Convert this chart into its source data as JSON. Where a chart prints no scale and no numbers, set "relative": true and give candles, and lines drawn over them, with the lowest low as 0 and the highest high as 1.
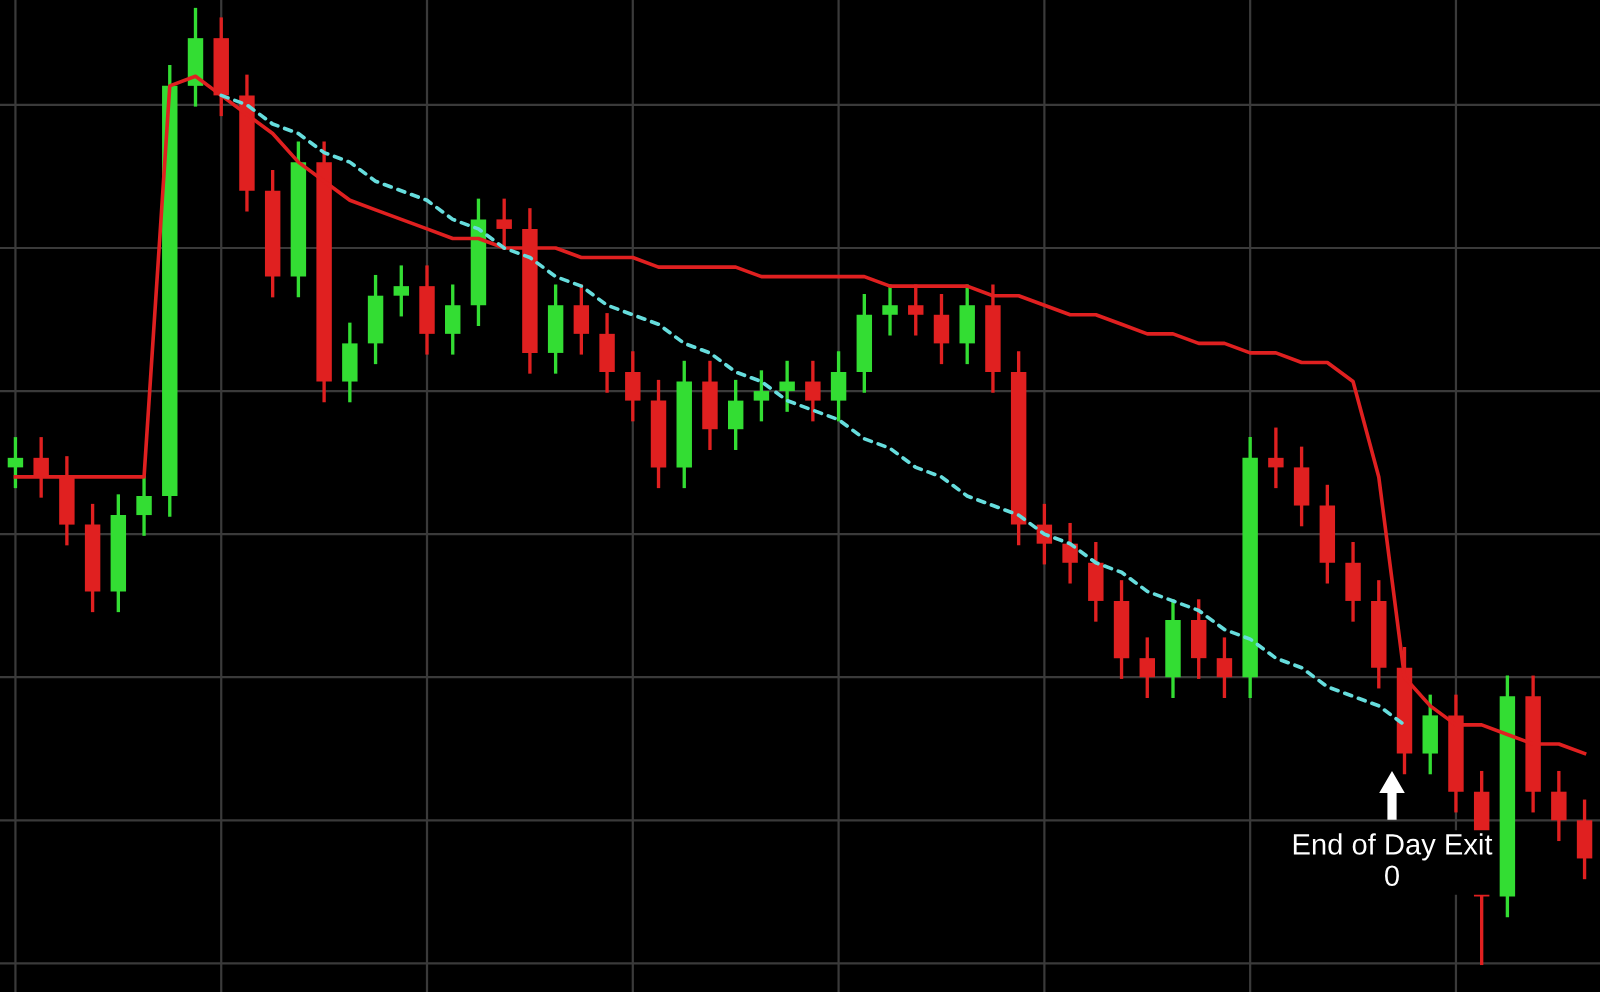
{
  "chart_data": {
    "type": "candlestick",
    "relative": true,
    "grid": true,
    "categories": [
      null,
      null,
      null,
      null,
      null,
      null,
      null,
      null,
      null,
      null,
      null,
      null,
      null,
      null,
      null,
      null,
      null,
      null,
      null,
      null,
      null,
      null,
      null,
      null,
      null,
      null,
      null,
      null,
      null,
      null,
      null,
      null,
      null,
      null,
      null,
      null,
      null,
      null,
      null,
      null,
      null,
      null,
      null,
      null,
      null,
      null,
      null,
      null,
      null,
      null,
      null,
      null,
      null,
      null,
      null,
      null,
      null,
      null,
      null,
      null,
      null,
      null
    ],
    "ohlc": [
      [
        0.52,
        0.55,
        0.5,
        0.53
      ],
      [
        0.53,
        0.55,
        0.49,
        0.51
      ],
      [
        0.51,
        0.53,
        0.44,
        0.46
      ],
      [
        0.46,
        0.48,
        0.37,
        0.39
      ],
      [
        0.39,
        0.49,
        0.37,
        0.47
      ],
      [
        0.47,
        0.51,
        0.45,
        0.49
      ],
      [
        0.49,
        0.94,
        0.47,
        0.92
      ],
      [
        0.92,
        1.0,
        0.9,
        0.97
      ],
      [
        0.97,
        0.99,
        0.89,
        0.91
      ],
      [
        0.91,
        0.93,
        0.79,
        0.81
      ],
      [
        0.81,
        0.83,
        0.7,
        0.72
      ],
      [
        0.72,
        0.86,
        0.7,
        0.84
      ],
      [
        0.84,
        0.86,
        0.59,
        0.61
      ],
      [
        0.61,
        0.67,
        0.59,
        0.65
      ],
      [
        0.65,
        0.72,
        0.63,
        0.7
      ],
      [
        0.7,
        0.73,
        0.68,
        0.71
      ],
      [
        0.71,
        0.73,
        0.64,
        0.66
      ],
      [
        0.66,
        0.71,
        0.64,
        0.69
      ],
      [
        0.69,
        0.8,
        0.67,
        0.78
      ],
      [
        0.78,
        0.8,
        0.75,
        0.77
      ],
      [
        0.77,
        0.79,
        0.62,
        0.64
      ],
      [
        0.64,
        0.71,
        0.62,
        0.69
      ],
      [
        0.69,
        0.71,
        0.64,
        0.66
      ],
      [
        0.66,
        0.68,
        0.6,
        0.62
      ],
      [
        0.62,
        0.64,
        0.57,
        0.59
      ],
      [
        0.59,
        0.61,
        0.5,
        0.52
      ],
      [
        0.52,
        0.63,
        0.5,
        0.61
      ],
      [
        0.61,
        0.63,
        0.54,
        0.56
      ],
      [
        0.56,
        0.61,
        0.54,
        0.59
      ],
      [
        0.59,
        0.62,
        0.57,
        0.6
      ],
      [
        0.6,
        0.63,
        0.58,
        0.61
      ],
      [
        0.61,
        0.63,
        0.57,
        0.59
      ],
      [
        0.59,
        0.64,
        0.57,
        0.62
      ],
      [
        0.62,
        0.7,
        0.6,
        0.68
      ],
      [
        0.68,
        0.71,
        0.66,
        0.69
      ],
      [
        0.69,
        0.71,
        0.66,
        0.68
      ],
      [
        0.68,
        0.7,
        0.63,
        0.65
      ],
      [
        0.65,
        0.71,
        0.63,
        0.69
      ],
      [
        0.69,
        0.71,
        0.6,
        0.62
      ],
      [
        0.62,
        0.64,
        0.44,
        0.46
      ],
      [
        0.46,
        0.48,
        0.42,
        0.44
      ],
      [
        0.44,
        0.46,
        0.4,
        0.42
      ],
      [
        0.42,
        0.44,
        0.36,
        0.38
      ],
      [
        0.38,
        0.4,
        0.3,
        0.32
      ],
      [
        0.32,
        0.34,
        0.28,
        0.3
      ],
      [
        0.3,
        0.38,
        0.28,
        0.36
      ],
      [
        0.36,
        0.38,
        0.3,
        0.32
      ],
      [
        0.32,
        0.34,
        0.28,
        0.3
      ],
      [
        0.3,
        0.55,
        0.28,
        0.53
      ],
      [
        0.53,
        0.56,
        0.5,
        0.52
      ],
      [
        0.52,
        0.54,
        0.46,
        0.48
      ],
      [
        0.48,
        0.5,
        0.4,
        0.42
      ],
      [
        0.42,
        0.44,
        0.36,
        0.38
      ],
      [
        0.38,
        0.4,
        0.29,
        0.31
      ],
      [
        0.31,
        0.33,
        0.2,
        0.22
      ],
      [
        0.22,
        0.28,
        0.2,
        0.26
      ],
      [
        0.26,
        0.28,
        0.16,
        0.18
      ],
      [
        0.18,
        0.2,
        0.0,
        0.07
      ],
      [
        0.07,
        0.3,
        0.05,
        0.28
      ],
      [
        0.28,
        0.3,
        0.16,
        0.18
      ],
      [
        0.18,
        0.2,
        0.13,
        0.15
      ],
      [
        0.15,
        0.17,
        0.09,
        0.11
      ]
    ],
    "colors": [
      "#33dd33",
      "#e02020",
      "#e02020",
      "#e02020",
      "#33dd33",
      "#33dd33",
      "#33dd33",
      "#33dd33",
      "#e02020",
      "#e02020",
      "#e02020",
      "#33dd33",
      "#e02020",
      "#33dd33",
      "#33dd33",
      "#33dd33",
      "#e02020",
      "#33dd33",
      "#33dd33",
      "#e02020",
      "#e02020",
      "#33dd33",
      "#e02020",
      "#e02020",
      "#e02020",
      "#e02020",
      "#33dd33",
      "#e02020",
      "#33dd33",
      "#33dd33",
      "#33dd33",
      "#e02020",
      "#33dd33",
      "#33dd33",
      "#33dd33",
      "#e02020",
      "#e02020",
      "#33dd33",
      "#e02020",
      "#e02020",
      "#e02020",
      "#e02020",
      "#e02020",
      "#e02020",
      "#e02020",
      "#33dd33",
      "#e02020",
      "#e02020",
      "#33dd33",
      "#e02020",
      "#e02020",
      "#e02020",
      "#e02020",
      "#e02020",
      "#e02020",
      "#33dd33",
      "#e02020",
      "#e02020",
      "#33dd33",
      "#e02020",
      "#e02020",
      "#e02020"
    ],
    "series": [
      {
        "type": "line",
        "color": "#e02020",
        "line_style": "solid",
        "values": [
          0.51,
          0.51,
          0.51,
          0.51,
          0.51,
          0.51,
          0.92,
          0.93,
          0.91,
          0.89,
          0.87,
          0.84,
          0.82,
          0.8,
          0.79,
          0.78,
          0.77,
          0.76,
          0.76,
          0.75,
          0.75,
          0.75,
          0.74,
          0.74,
          0.74,
          0.73,
          0.73,
          0.73,
          0.73,
          0.72,
          0.72,
          0.72,
          0.72,
          0.72,
          0.71,
          0.71,
          0.71,
          0.71,
          0.7,
          0.7,
          0.69,
          0.68,
          0.68,
          0.67,
          0.66,
          0.66,
          0.65,
          0.65,
          0.64,
          0.64,
          0.63,
          0.63,
          0.61,
          0.51,
          0.3,
          0.27,
          0.25,
          0.25,
          0.24,
          0.23,
          0.23,
          0.22
        ]
      },
      {
        "type": "line",
        "color": "#66dddd",
        "line_style": "dashed",
        "values": [
          null,
          null,
          null,
          null,
          null,
          null,
          null,
          null,
          0.91,
          0.9,
          0.88,
          0.87,
          0.85,
          0.84,
          0.82,
          0.81,
          0.8,
          0.78,
          0.77,
          0.75,
          0.74,
          0.72,
          0.71,
          0.69,
          0.68,
          0.67,
          0.65,
          0.64,
          0.62,
          0.61,
          0.59,
          0.58,
          0.57,
          0.55,
          0.54,
          0.52,
          0.51,
          0.49,
          0.48,
          0.47,
          0.45,
          0.44,
          0.42,
          0.41,
          0.39,
          0.38,
          0.37,
          0.35,
          0.34,
          0.32,
          0.31,
          0.29,
          0.28,
          0.27,
          0.25,
          null,
          null,
          null,
          null,
          null,
          null,
          null
        ]
      }
    ],
    "annotations": [
      "End of Day Exit\n0"
    ]
  }
}
